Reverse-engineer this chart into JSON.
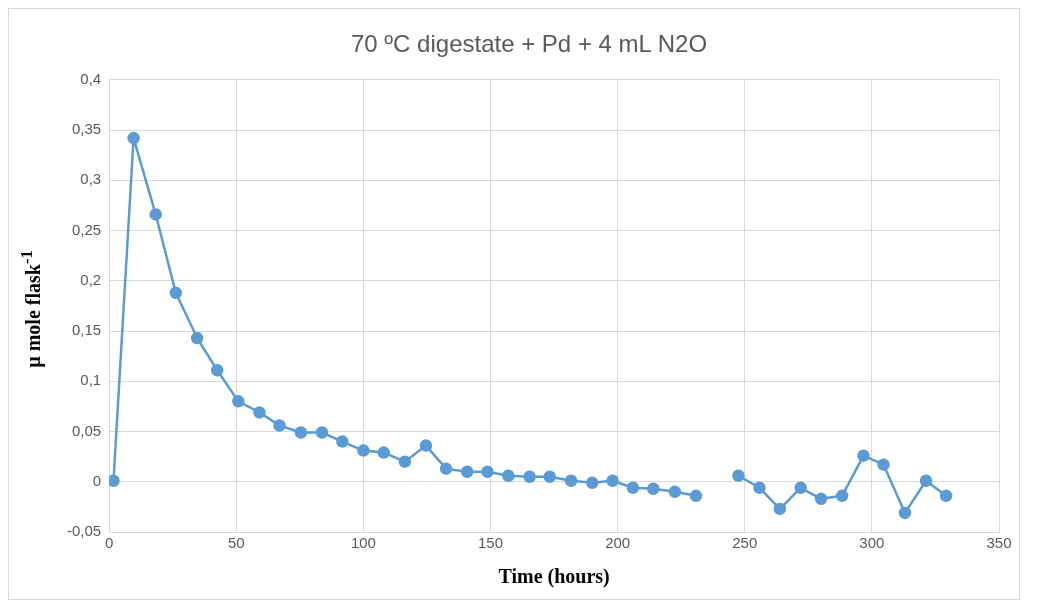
{
  "chart_data": {
    "type": "line",
    "title": "70 ºC digestate + Pd + 4 mL N2O",
    "xlabel": "Time (hours)",
    "ylabel": "µ mole flask$^{-1}$",
    "x": [
      1.7,
      9.6,
      18.3,
      26.2,
      34.6,
      42.5,
      50.8,
      59.1,
      67,
      75.4,
      83.7,
      91.7,
      100,
      108,
      116.3,
      124.6,
      132.5,
      140.8,
      148.8,
      157,
      165.4,
      173.3,
      181.7,
      190,
      198,
      206,
      214,
      222.5,
      230.8,
      239,
      247.5,
      255.8,
      263.8,
      272,
      280,
      288.3,
      296.7,
      304.6,
      313,
      321.3,
      329.2
    ],
    "series": [
      {
        "color": "#5b9bd5",
        "values": [
          0.001,
          0.342,
          0.266,
          0.188,
          0.143,
          0.111,
          0.08,
          0.069,
          0.056,
          0.049,
          0.049,
          0.04,
          0.031,
          0.029,
          0.02,
          0.036,
          0.013,
          0.01,
          0.01,
          0.006,
          0.005,
          0.005,
          0.001,
          -0.001,
          0.001,
          -0.006,
          -0.007,
          -0.01,
          -0.014,
          null,
          0.006,
          -0.006,
          -0.027,
          -0.006,
          -0.017,
          -0.014,
          0.026,
          0.017,
          -0.031,
          0.001,
          -0.014
        ]
      }
    ],
    "xlim": [
      0,
      350
    ],
    "xticks": [
      0,
      50,
      100,
      150,
      200,
      250,
      300,
      350
    ],
    "ylim": [
      -0.05,
      0.4
    ],
    "yticks": [
      {
        "value": -0.05,
        "label": "-0,05"
      },
      {
        "value": 0,
        "label": "0"
      },
      {
        "value": 0.05,
        "label": "0,05"
      },
      {
        "value": 0.1,
        "label": "0,1"
      },
      {
        "value": 0.15,
        "label": "0,15"
      },
      {
        "value": 0.2,
        "label": "0,2"
      },
      {
        "value": 0.25,
        "label": "0,25"
      },
      {
        "value": 0.3,
        "label": "0,3"
      },
      {
        "value": 0.35,
        "label": "0,35"
      },
      {
        "value": 0.4,
        "label": "0,4"
      }
    ],
    "grid": true,
    "legend": false,
    "marker": "circle",
    "line_style": "solid"
  }
}
